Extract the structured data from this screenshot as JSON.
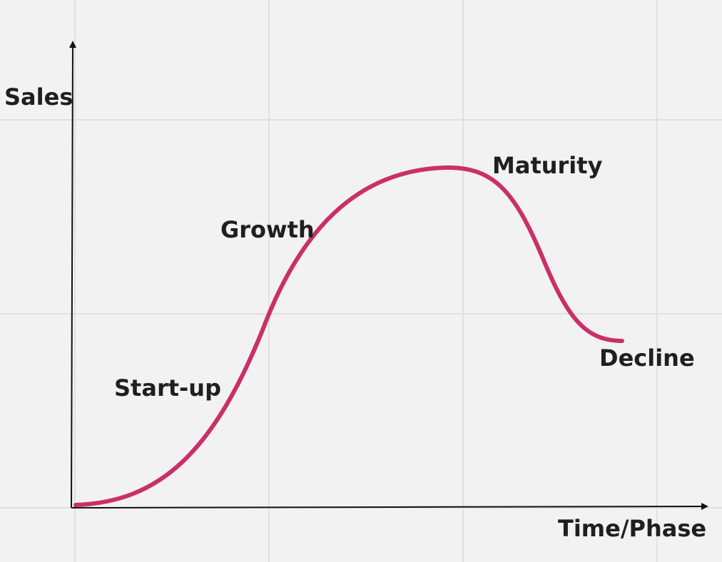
{
  "colors": {
    "background": "#f2f2f2",
    "grid": "#e0e0e0",
    "axis": "#111111",
    "curve": "#c9306a",
    "text": "#1f1f1f"
  },
  "axes": {
    "y_label": "Sales",
    "x_label": "Time/Phase"
  },
  "stages": [
    {
      "label": "Start-up"
    },
    {
      "label": "Growth"
    },
    {
      "label": "Maturity"
    },
    {
      "label": "Decline"
    }
  ]
}
